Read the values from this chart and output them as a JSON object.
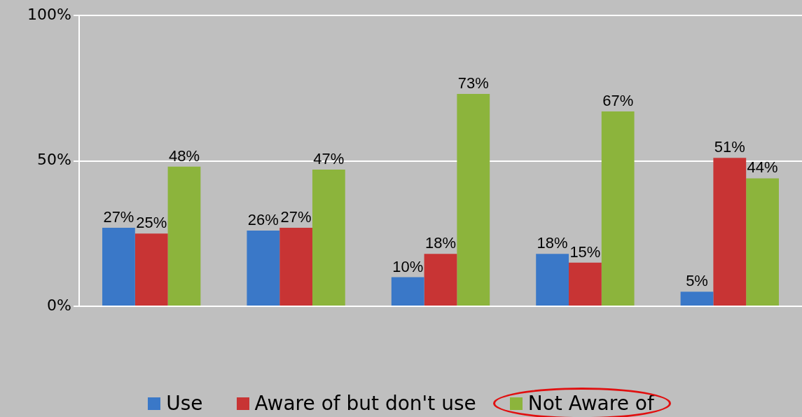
{
  "chart_data": {
    "type": "bar",
    "categories": [
      null,
      null,
      null,
      null,
      null
    ],
    "series": [
      {
        "name": "Use",
        "color": "#3a78c8",
        "values": [
          27,
          26,
          10,
          18,
          5
        ]
      },
      {
        "name": "Aware of but don't use",
        "color": "#c83434",
        "values": [
          25,
          27,
          18,
          15,
          51
        ]
      },
      {
        "name": "Not Aware of",
        "color": "#8cb43c",
        "values": [
          48,
          47,
          73,
          67,
          44
        ]
      }
    ],
    "ylim": [
      0,
      100
    ],
    "yticks": [
      {
        "value": 0,
        "label": "0%"
      },
      {
        "value": 50,
        "label": "50%"
      },
      {
        "value": 100,
        "label": "100%"
      }
    ],
    "value_labels": [
      [
        "27%",
        "26%",
        "10%",
        "18%",
        "5%"
      ],
      [
        "25%",
        "27%",
        "18%",
        "15%",
        "51%"
      ],
      [
        "48%",
        "47%",
        "73%",
        "67%",
        "44%"
      ]
    ],
    "grid": "y",
    "legend": "bottom"
  }
}
